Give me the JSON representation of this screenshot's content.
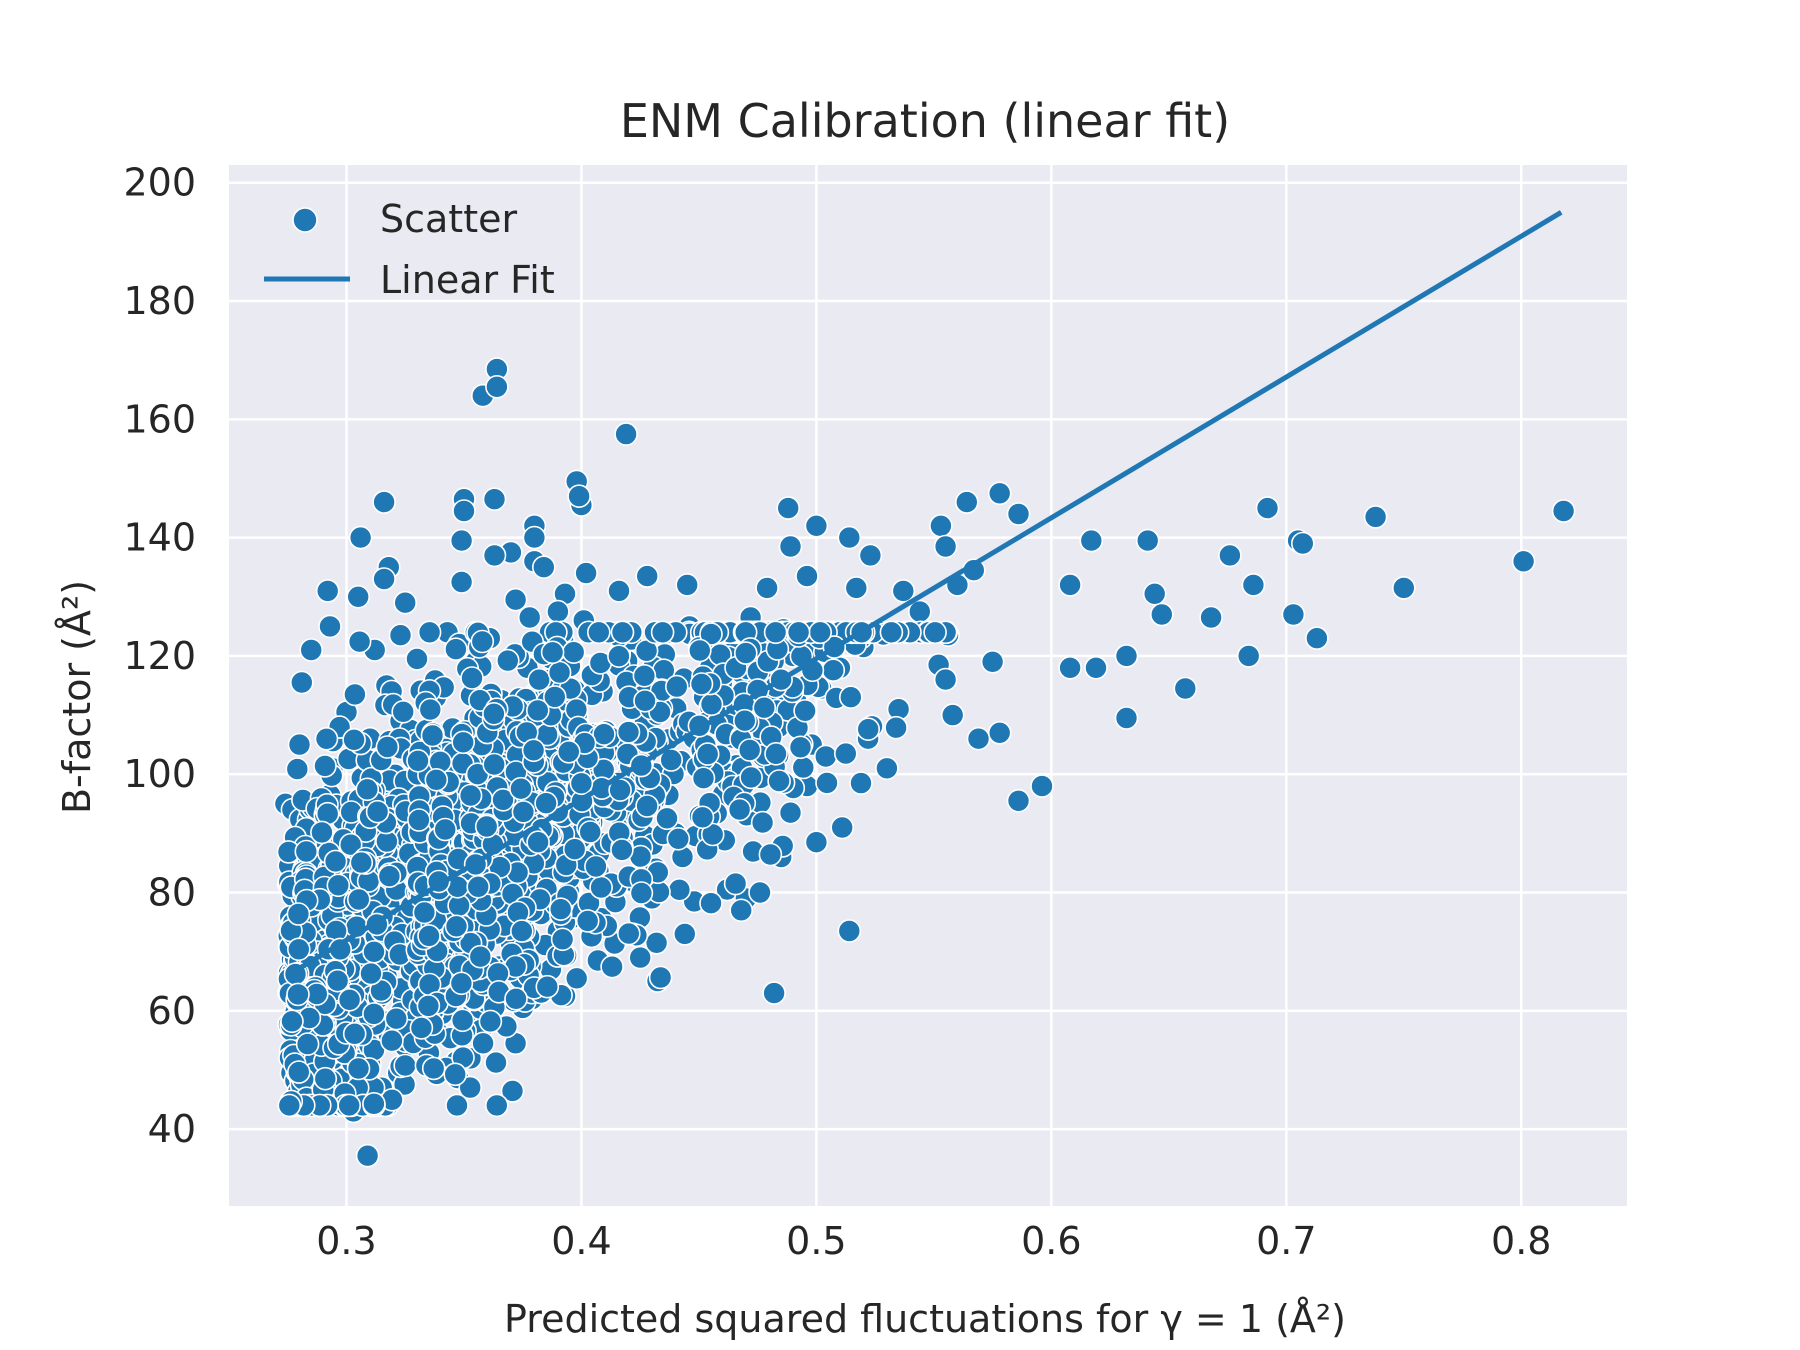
{
  "chart_data": {
    "type": "scatter",
    "title": "ENM Calibration (linear fit)",
    "xlabel": "Predicted squared fluctuations for γ = 1 (Å²)",
    "ylabel": "B-factor (Å²)",
    "xlim": [
      0.25,
      0.845
    ],
    "ylim": [
      27,
      203
    ],
    "xticks": [
      0.3,
      0.4,
      0.5,
      0.6,
      0.7,
      0.8
    ],
    "xtick_labels": [
      "0.3",
      "0.4",
      "0.5",
      "0.6",
      "0.7",
      "0.8"
    ],
    "yticks": [
      40,
      60,
      80,
      100,
      120,
      140,
      160,
      180,
      200
    ],
    "ytick_labels": [
      "40",
      "60",
      "80",
      "100",
      "120",
      "140",
      "160",
      "180",
      "200"
    ],
    "grid": true,
    "legend_position": "top-left",
    "colors": {
      "series": "#1f77b4",
      "background": "#eaeaf2",
      "grid": "#ffffff",
      "marker_edge": "#ffffff"
    },
    "series": [
      {
        "name": "Scatter",
        "kind": "scatter",
        "approximate_point_count": 3000,
        "points": [
          [
            0.364,
            168.5
          ],
          [
            0.358,
            164.0
          ],
          [
            0.364,
            165.5
          ],
          [
            0.419,
            157.5
          ],
          [
            0.398,
            149.5
          ],
          [
            0.35,
            146.5
          ],
          [
            0.363,
            146.5
          ],
          [
            0.316,
            146.0
          ],
          [
            0.4,
            145.5
          ],
          [
            0.35,
            144.5
          ],
          [
            0.399,
            147.0
          ],
          [
            0.38,
            142.0
          ],
          [
            0.38,
            140.0
          ],
          [
            0.306,
            140.0
          ],
          [
            0.349,
            139.5
          ],
          [
            0.37,
            137.5
          ],
          [
            0.363,
            137.0
          ],
          [
            0.38,
            136.0
          ],
          [
            0.318,
            135.0
          ],
          [
            0.384,
            135.0
          ],
          [
            0.402,
            134.0
          ],
          [
            0.416,
            131.0
          ],
          [
            0.349,
            132.5
          ],
          [
            0.316,
            133.0
          ],
          [
            0.428,
            133.5
          ],
          [
            0.393,
            130.5
          ],
          [
            0.292,
            131.0
          ],
          [
            0.305,
            130.0
          ],
          [
            0.325,
            129.0
          ],
          [
            0.372,
            129.5
          ],
          [
            0.401,
            126.0
          ],
          [
            0.445,
            132.0
          ],
          [
            0.39,
            127.5
          ],
          [
            0.378,
            126.5
          ],
          [
            0.293,
            125.0
          ],
          [
            0.343,
            124.0
          ],
          [
            0.323,
            123.5
          ],
          [
            0.361,
            123.0
          ],
          [
            0.348,
            122.0
          ],
          [
            0.312,
            121.0
          ],
          [
            0.285,
            121.0
          ],
          [
            0.33,
            119.5
          ],
          [
            0.355,
            119.0
          ],
          [
            0.392,
            118.5
          ],
          [
            0.377,
            118.0
          ],
          [
            0.422,
            116.0
          ],
          [
            0.281,
            115.5
          ],
          [
            0.317,
            115.0
          ],
          [
            0.338,
            113.0
          ],
          [
            0.366,
            112.5
          ],
          [
            0.409,
            114.0
          ],
          [
            0.434,
            114.5
          ],
          [
            0.3,
            110.5
          ],
          [
            0.323,
            109.0
          ],
          [
            0.357,
            108.0
          ],
          [
            0.395,
            108.5
          ],
          [
            0.42,
            102.0
          ],
          [
            0.31,
            106.0
          ],
          [
            0.28,
            105.0
          ],
          [
            0.371,
            105.5
          ],
          [
            0.352,
            104.0
          ],
          [
            0.335,
            102.5
          ],
          [
            0.405,
            103.5
          ],
          [
            0.294,
            101.0
          ],
          [
            0.274,
            95.0
          ],
          [
            0.277,
            94.0
          ],
          [
            0.293,
            96.5
          ],
          [
            0.312,
            96.0
          ],
          [
            0.336,
            96.5
          ],
          [
            0.354,
            96.5
          ],
          [
            0.362,
            98.0
          ],
          [
            0.389,
            97.5
          ],
          [
            0.412,
            97.5
          ],
          [
            0.425,
            96.5
          ],
          [
            0.437,
            96.5
          ],
          [
            0.286,
            92.0
          ],
          [
            0.305,
            91.0
          ],
          [
            0.332,
            90.5
          ],
          [
            0.356,
            88.5
          ],
          [
            0.376,
            90.5
          ],
          [
            0.397,
            91.0
          ],
          [
            0.417,
            88.5
          ],
          [
            0.44,
            90.0
          ],
          [
            0.278,
            88.0
          ],
          [
            0.278,
            85.0
          ],
          [
            0.3,
            84.5
          ],
          [
            0.322,
            86.0
          ],
          [
            0.345,
            84.0
          ],
          [
            0.368,
            83.0
          ],
          [
            0.386,
            85.0
          ],
          [
            0.404,
            84.5
          ],
          [
            0.421,
            82.0
          ],
          [
            0.443,
            86.0
          ],
          [
            0.462,
            80.5
          ],
          [
            0.279,
            78.0
          ],
          [
            0.296,
            79.0
          ],
          [
            0.316,
            77.5
          ],
          [
            0.34,
            78.5
          ],
          [
            0.358,
            80.5
          ],
          [
            0.381,
            77.0
          ],
          [
            0.402,
            78.0
          ],
          [
            0.43,
            79.0
          ],
          [
            0.448,
            78.5
          ],
          [
            0.47,
            79.0
          ],
          [
            0.468,
            77.0
          ],
          [
            0.286,
            75.0
          ],
          [
            0.299,
            74.0
          ],
          [
            0.324,
            73.0
          ],
          [
            0.349,
            74.5
          ],
          [
            0.37,
            71.5
          ],
          [
            0.39,
            73.5
          ],
          [
            0.415,
            72.0
          ],
          [
            0.432,
            71.5
          ],
          [
            0.444,
            73.0
          ],
          [
            0.283,
            68.5
          ],
          [
            0.303,
            69.0
          ],
          [
            0.329,
            68.0
          ],
          [
            0.352,
            70.0
          ],
          [
            0.365,
            67.5
          ],
          [
            0.387,
            67.0
          ],
          [
            0.407,
            68.5
          ],
          [
            0.425,
            69.0
          ],
          [
            0.284,
            65.0
          ],
          [
            0.301,
            64.0
          ],
          [
            0.327,
            63.5
          ],
          [
            0.356,
            62.5
          ],
          [
            0.379,
            62.0
          ],
          [
            0.393,
            62.5
          ],
          [
            0.398,
            65.5
          ],
          [
            0.287,
            60.5
          ],
          [
            0.302,
            59.5
          ],
          [
            0.315,
            58.5
          ],
          [
            0.334,
            59.0
          ],
          [
            0.356,
            60.0
          ],
          [
            0.375,
            60.5
          ],
          [
            0.284,
            56.0
          ],
          [
            0.299,
            55.0
          ],
          [
            0.318,
            56.0
          ],
          [
            0.325,
            54.0
          ],
          [
            0.353,
            57.5
          ],
          [
            0.372,
            54.5
          ],
          [
            0.289,
            51.5
          ],
          [
            0.299,
            52.5
          ],
          [
            0.31,
            51.0
          ],
          [
            0.322,
            49.5
          ],
          [
            0.297,
            48.5
          ],
          [
            0.306,
            47.5
          ],
          [
            0.315,
            47.0
          ],
          [
            0.299,
            44.5
          ],
          [
            0.303,
            43.0
          ],
          [
            0.308,
            46.5
          ],
          [
            0.309,
            35.5
          ],
          [
            0.482,
            63.0
          ],
          [
            0.514,
            73.5
          ],
          [
            0.446,
            125.0
          ],
          [
            0.461,
            120.5
          ],
          [
            0.476,
            118.0
          ],
          [
            0.49,
            120.0
          ],
          [
            0.457,
            112.0
          ],
          [
            0.47,
            110.5
          ],
          [
            0.484,
            108.0
          ],
          [
            0.502,
            114.5
          ],
          [
            0.466,
            101.5
          ],
          [
            0.479,
            100.0
          ],
          [
            0.496,
            98.0
          ],
          [
            0.473,
            95.0
          ],
          [
            0.489,
            93.5
          ],
          [
            0.485,
            86.0
          ],
          [
            0.476,
            80.0
          ],
          [
            0.455,
            90.0
          ],
          [
            0.5,
            88.5
          ],
          [
            0.511,
            91.0
          ],
          [
            0.479,
            131.5
          ],
          [
            0.496,
            133.5
          ],
          [
            0.472,
            126.5
          ],
          [
            0.486,
            124.5
          ],
          [
            0.507,
            124.0
          ],
          [
            0.52,
            121.5
          ],
          [
            0.51,
            118.0
          ],
          [
            0.498,
            105.0
          ],
          [
            0.522,
            106.0
          ],
          [
            0.535,
            111.0
          ],
          [
            0.519,
            98.5
          ],
          [
            0.53,
            101.0
          ],
          [
            0.504,
            103.0
          ],
          [
            0.489,
            138.5
          ],
          [
            0.5,
            142.0
          ],
          [
            0.514,
            140.0
          ],
          [
            0.523,
            137.0
          ],
          [
            0.488,
            145.0
          ],
          [
            0.517,
            131.5
          ],
          [
            0.537,
            131.0
          ],
          [
            0.544,
            127.5
          ],
          [
            0.556,
            123.5
          ],
          [
            0.552,
            118.5
          ],
          [
            0.555,
            116.0
          ],
          [
            0.558,
            110.0
          ],
          [
            0.553,
            142.0
          ],
          [
            0.564,
            146.0
          ],
          [
            0.578,
            147.5
          ],
          [
            0.586,
            144.0
          ],
          [
            0.555,
            138.5
          ],
          [
            0.56,
            132.0
          ],
          [
            0.567,
            134.5
          ],
          [
            0.575,
            119.0
          ],
          [
            0.569,
            106.0
          ],
          [
            0.578,
            107.0
          ],
          [
            0.586,
            95.5
          ],
          [
            0.596,
            98.0
          ],
          [
            0.608,
            132.0
          ],
          [
            0.608,
            118.0
          ],
          [
            0.617,
            139.5
          ],
          [
            0.619,
            118.0
          ],
          [
            0.632,
            120.0
          ],
          [
            0.632,
            109.5
          ],
          [
            0.641,
            139.5
          ],
          [
            0.644,
            130.5
          ],
          [
            0.647,
            127.0
          ],
          [
            0.657,
            114.5
          ],
          [
            0.668,
            126.5
          ],
          [
            0.676,
            137.0
          ],
          [
            0.684,
            120.0
          ],
          [
            0.686,
            132.0
          ],
          [
            0.692,
            145.0
          ],
          [
            0.703,
            127.0
          ],
          [
            0.705,
            139.5
          ],
          [
            0.707,
            139.0
          ],
          [
            0.713,
            123.0
          ],
          [
            0.738,
            143.5
          ],
          [
            0.75,
            131.5
          ],
          [
            0.801,
            136.0
          ],
          [
            0.818,
            144.5
          ]
        ]
      },
      {
        "name": "Linear Fit",
        "kind": "line",
        "x": [
          0.275,
          0.817
        ],
        "y": [
          66.0,
          195.0
        ]
      }
    ]
  }
}
